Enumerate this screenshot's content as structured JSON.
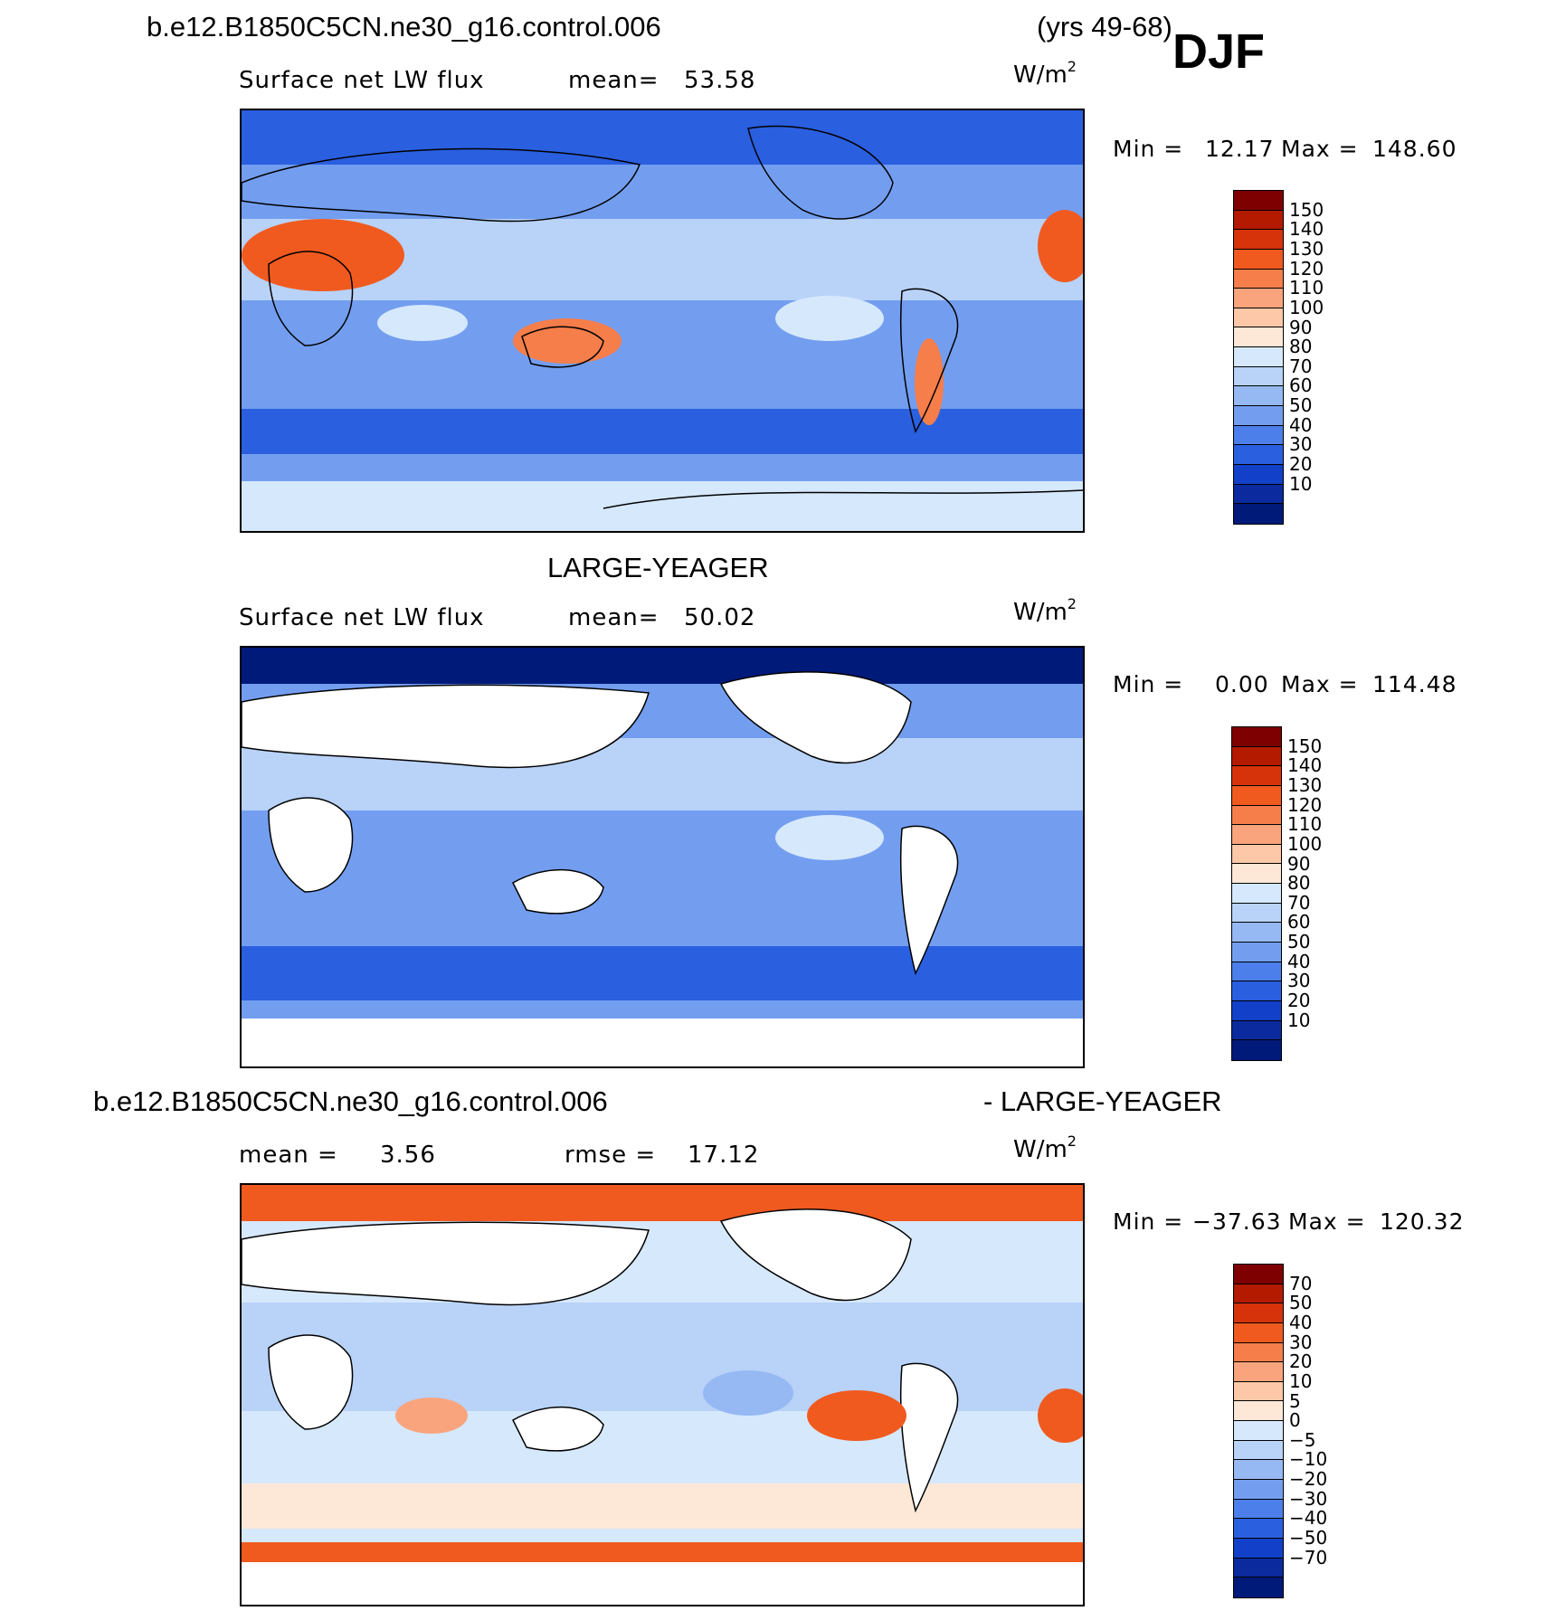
{
  "header": {
    "case_name": "b.e12.B1850C5CN.ne30_g16.control.006",
    "years": "(yrs 49-68)",
    "season": "DJF",
    "obs_title": "LARGE-YEAGER",
    "diff_case": "b.e12.B1850C5CN.ne30_g16.control.006",
    "diff_obs": "- LARGE-YEAGER"
  },
  "panels": [
    {
      "id": "model",
      "left_label": "Surface net LW flux",
      "stat_label": "mean=",
      "stat_value": "53.58",
      "units": "W/m",
      "units_sup": "2",
      "min_label": "Min =",
      "min_value": "12.17",
      "max_label": "Max =",
      "max_value": "148.60",
      "levels": [
        "150",
        "140",
        "130",
        "120",
        "110",
        "100",
        "90",
        "80",
        "70",
        "60",
        "50",
        "40",
        "30",
        "20",
        "10"
      ],
      "colors": [
        "#7f0000",
        "#b31a00",
        "#d6330a",
        "#f05a1f",
        "#f57e4a",
        "#f9a47c",
        "#fcc8a8",
        "#fde8d8",
        "#d6e8fb",
        "#b8d2f8",
        "#96b9f4",
        "#739ef0",
        "#4c7fea",
        "#2a5fe0",
        "#1240c8",
        "#0a2a9e",
        "#001a7a"
      ]
    },
    {
      "id": "obs",
      "left_label": "Surface net LW flux",
      "stat_label": "mean=",
      "stat_value": "50.02",
      "units": "W/m",
      "units_sup": "2",
      "min_label": "Min =",
      "min_value": "0.00",
      "max_label": "Max =",
      "max_value": "114.48",
      "levels": [
        "150",
        "140",
        "130",
        "120",
        "110",
        "100",
        "90",
        "80",
        "70",
        "60",
        "50",
        "40",
        "30",
        "20",
        "10"
      ],
      "colors": [
        "#7f0000",
        "#b31a00",
        "#d6330a",
        "#f05a1f",
        "#f57e4a",
        "#f9a47c",
        "#fcc8a8",
        "#fde8d8",
        "#d6e8fb",
        "#b8d2f8",
        "#96b9f4",
        "#739ef0",
        "#4c7fea",
        "#2a5fe0",
        "#1240c8",
        "#0a2a9e",
        "#001a7a"
      ]
    },
    {
      "id": "diff",
      "left_label": "mean =",
      "left_value": "3.56",
      "stat_label": "rmse =",
      "stat_value": "17.12",
      "units": "W/m",
      "units_sup": "2",
      "min_label": "Min =",
      "min_value": "−37.63",
      "max_label": "Max =",
      "max_value": "120.32",
      "levels": [
        "70",
        "50",
        "40",
        "30",
        "20",
        "10",
        "5",
        "0",
        "−5",
        "−10",
        "−20",
        "−30",
        "−40",
        "−50",
        "−70"
      ],
      "colors": [
        "#7f0000",
        "#b31a00",
        "#d6330a",
        "#f05a1f",
        "#f57e4a",
        "#f9a47c",
        "#fcc8a8",
        "#fde8d8",
        "#d6e8fb",
        "#b8d2f8",
        "#96b9f4",
        "#739ef0",
        "#4c7fea",
        "#2a5fe0",
        "#1240c8",
        "#0a2a9e",
        "#001a7a"
      ]
    }
  ]
}
